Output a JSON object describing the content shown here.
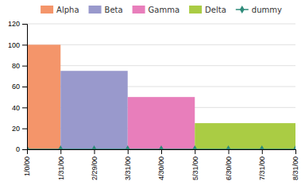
{
  "chart_data": {
    "type": "bar",
    "series": [
      {
        "name": "Alpha",
        "type": "bar",
        "bins": [
          0,
          1
        ],
        "values": [
          100
        ],
        "color": "#F4956A"
      },
      {
        "name": "Beta",
        "type": "bar",
        "bins": [
          1,
          3
        ],
        "values": [
          75
        ],
        "color": "#9999CC"
      },
      {
        "name": "Gamma",
        "type": "bar",
        "bins": [
          3,
          5
        ],
        "values": [
          50
        ],
        "color": "#E87EBB"
      },
      {
        "name": "Delta",
        "type": "bar",
        "bins": [
          5,
          8
        ],
        "values": [
          25
        ],
        "color": "#AACC44"
      },
      {
        "name": "dummy",
        "type": "line",
        "x": [
          0,
          1,
          2,
          3,
          4,
          5,
          6,
          7,
          8
        ],
        "values": [
          0,
          0,
          0,
          0,
          0,
          0,
          0,
          0,
          0
        ],
        "color": "#2E8B7A",
        "marker": "diamond"
      }
    ],
    "xlim": [
      0,
      8.0
    ],
    "xticks": [
      {
        "value": 0,
        "label": "1/0/00"
      },
      {
        "value": 1,
        "label": "1/31/00"
      },
      {
        "value": 2,
        "label": "2/29/00"
      },
      {
        "value": 3,
        "label": "3/31/00"
      },
      {
        "value": 4,
        "label": "4/30/00"
      },
      {
        "value": 5,
        "label": "5/31/00"
      },
      {
        "value": 6,
        "label": "6/30/00"
      },
      {
        "value": 7,
        "label": "7/31/00"
      },
      {
        "value": 8,
        "label": "8/31/00"
      }
    ],
    "ylim": [
      0,
      120
    ],
    "yticks": [
      0,
      20,
      40,
      60,
      80,
      100,
      120
    ],
    "grid": "y",
    "legend": "top"
  }
}
